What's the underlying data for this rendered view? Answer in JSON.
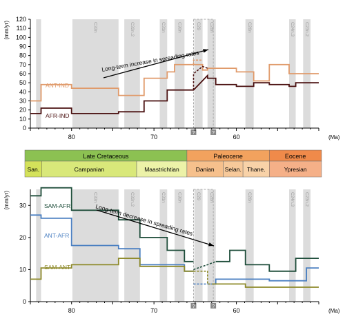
{
  "chart_data": [
    {
      "type": "line",
      "ylabel": "(mm/yr)",
      "xlabel": "(Ma)",
      "xlim": [
        85,
        50
      ],
      "ylim": [
        0,
        120
      ],
      "yticks": [
        0,
        10,
        20,
        30,
        40,
        50,
        60,
        70,
        80,
        90,
        100,
        110,
        120
      ],
      "xticks": [
        80,
        70,
        60
      ],
      "chrons": [
        {
          "label": "C33n",
          "from": 79.9,
          "to": 74.3
        },
        {
          "label": "C32n.2",
          "from": 73.6,
          "to": 71.7
        },
        {
          "label": "C31n",
          "from": 69.3,
          "to": 68.4
        },
        {
          "label": "C30n",
          "from": 67.5,
          "to": 66.3
        },
        {
          "label": "C29",
          "from": 65.1,
          "to": 64.1
        },
        {
          "label": "C28n",
          "from": 63.5,
          "to": 62.5
        },
        {
          "label": "C26n",
          "from": 58.9,
          "to": 57.9
        },
        {
          "label": "C24n.3",
          "from": 53.6,
          "to": 52.8
        },
        {
          "label": "C23n.2",
          "from": 51.9,
          "to": 51.0
        }
      ],
      "extra_bands": [
        {
          "from": 84.3,
          "to": 83.7
        }
      ],
      "gap_box": {
        "from": 65.2,
        "to": 62.8,
        "marker": "?"
      },
      "annotation": "Long-term increase in spreading rates",
      "series": [
        {
          "name": "ANT-IND",
          "color": "#e09a6a",
          "points": [
            [
              85,
              30
            ],
            [
              83.7,
              30
            ],
            [
              83.7,
              48
            ],
            [
              80,
              48
            ],
            [
              80,
              44
            ],
            [
              74.3,
              44
            ],
            [
              74.3,
              36
            ],
            [
              71.2,
              36
            ],
            [
              71.2,
              55
            ],
            [
              68.4,
              55
            ],
            [
              68.4,
              62
            ],
            [
              67.5,
              62
            ],
            [
              67.5,
              70
            ],
            [
              64.1,
              70
            ],
            [
              64.1,
              64
            ],
            [
              63.5,
              64
            ],
            [
              63.5,
              66
            ],
            [
              60,
              66
            ],
            [
              60,
              62
            ],
            [
              57.9,
              62
            ],
            [
              57.9,
              52
            ],
            [
              56,
              52
            ],
            [
              56,
              70
            ],
            [
              53.6,
              70
            ],
            [
              53.6,
              60
            ],
            [
              50,
              60
            ]
          ],
          "dashed_points": [
            [
              65.2,
              70
            ],
            [
              65.2,
              75
            ],
            [
              64.1,
              75
            ]
          ]
        },
        {
          "name": "AFR-IND",
          "color": "#4a1010",
          "points": [
            [
              85,
              16
            ],
            [
              83.7,
              16
            ],
            [
              83.7,
              22
            ],
            [
              80,
              22
            ],
            [
              80,
              16
            ],
            [
              74.3,
              16
            ],
            [
              74.3,
              18
            ],
            [
              71.2,
              18
            ],
            [
              71.2,
              30
            ],
            [
              68.4,
              30
            ],
            [
              68.4,
              42
            ],
            [
              65.2,
              42
            ],
            [
              63.5,
              58
            ],
            [
              63.5,
              55
            ],
            [
              62.5,
              55
            ],
            [
              62.5,
              48
            ],
            [
              60,
              48
            ],
            [
              60,
              46
            ],
            [
              57.9,
              46
            ],
            [
              57.9,
              50
            ],
            [
              56,
              50
            ],
            [
              56,
              48
            ],
            [
              53.6,
              48
            ],
            [
              53.6,
              46
            ],
            [
              52.8,
              46
            ],
            [
              52.8,
              50
            ],
            [
              50,
              50
            ]
          ],
          "dashed_points": [
            [
              65.2,
              42
            ],
            [
              65.2,
              60
            ],
            [
              64.1,
              68
            ],
            [
              63.5,
              66
            ]
          ]
        }
      ]
    },
    {
      "type": "table",
      "epochs": [
        {
          "label": "Late Cretaceous",
          "from": 85,
          "to": 66,
          "color": "#8cc152"
        },
        {
          "label": "Paleocene",
          "from": 66,
          "to": 56,
          "color": "#f2a25e"
        },
        {
          "label": "Eocene",
          "from": 56,
          "to": 50,
          "color": "#f08a4a"
        }
      ],
      "stages": [
        {
          "label": "San.",
          "from": 85,
          "to": 83.6,
          "color": "#d4e25a"
        },
        {
          "label": "Campanian",
          "from": 83.6,
          "to": 72.1,
          "color": "#d9e87a"
        },
        {
          "label": "Maastrichtian",
          "from": 72.1,
          "to": 66,
          "color": "#ecf2a8"
        },
        {
          "label": "Danian",
          "from": 66,
          "to": 61.6,
          "color": "#f6c08c"
        },
        {
          "label": "Selan.",
          "from": 61.6,
          "to": 59.2,
          "color": "#f7c99a"
        },
        {
          "label": "Thane.",
          "from": 59.2,
          "to": 56,
          "color": "#f8d2a8"
        },
        {
          "label": "Ypresian",
          "from": 56,
          "to": 50,
          "color": "#f5b088"
        }
      ]
    },
    {
      "type": "line",
      "ylabel": "(mm/yr)",
      "xlabel": "(Ma)",
      "xlim": [
        85,
        50
      ],
      "ylim": [
        0,
        35
      ],
      "yticks": [
        0,
        10,
        20,
        30
      ],
      "xticks": [
        80,
        70,
        60
      ],
      "chrons": [
        {
          "label": "C33n",
          "from": 79.9,
          "to": 74.3
        },
        {
          "label": "C32n.2",
          "from": 73.6,
          "to": 71.7
        },
        {
          "label": "C31n",
          "from": 69.3,
          "to": 68.4
        },
        {
          "label": "C30n",
          "from": 67.5,
          "to": 66.3
        },
        {
          "label": "C29",
          "from": 65.1,
          "to": 64.1
        },
        {
          "label": "C28n",
          "from": 63.5,
          "to": 62.5
        },
        {
          "label": "C26n",
          "from": 58.9,
          "to": 57.9
        },
        {
          "label": "C24n.3",
          "from": 53.6,
          "to": 52.8
        },
        {
          "label": "C23n.2",
          "from": 51.9,
          "to": 51.0
        }
      ],
      "extra_bands": [
        {
          "from": 84.3,
          "to": 83.7
        }
      ],
      "gap_box": {
        "from": 65.2,
        "to": 62.8,
        "marker": "?"
      },
      "annotation": "Long-term decrease in spreading rates",
      "series": [
        {
          "name": "SAM-AFR",
          "color": "#1e4d3a",
          "points": [
            [
              85,
              33
            ],
            [
              83.7,
              33
            ],
            [
              83.7,
              35.5
            ],
            [
              80,
              35.5
            ],
            [
              80,
              28.5
            ],
            [
              74.3,
              28.5
            ],
            [
              74.3,
              25.5
            ],
            [
              71.7,
              25.5
            ],
            [
              71.7,
              20
            ],
            [
              68.4,
              20
            ],
            [
              68.4,
              16
            ],
            [
              66.3,
              16
            ],
            [
              66.3,
              12.5
            ],
            [
              65.2,
              12.5
            ]
          ],
          "dashed_points": [
            [
              65.2,
              10
            ],
            [
              64.1,
              11
            ],
            [
              63.5,
              11.5
            ],
            [
              62.5,
              12.5
            ]
          ],
          "points2": [
            [
              62.5,
              12.5
            ],
            [
              60.8,
              12.5
            ],
            [
              60.8,
              16
            ],
            [
              58.9,
              16
            ],
            [
              58.9,
              11.5
            ],
            [
              56,
              11.5
            ],
            [
              56,
              9.5
            ],
            [
              52.8,
              9.5
            ],
            [
              52.8,
              13.5
            ],
            [
              50,
              13.5
            ]
          ]
        },
        {
          "name": "ANT-AFR",
          "color": "#4a7fc1",
          "points": [
            [
              85,
              27
            ],
            [
              83.7,
              27
            ],
            [
              83.7,
              26
            ],
            [
              80,
              26
            ],
            [
              80,
              17.5
            ],
            [
              74.3,
              17.5
            ],
            [
              74.3,
              16.5
            ],
            [
              71.7,
              16.5
            ],
            [
              71.7,
              11.5
            ],
            [
              66.3,
              11.5
            ],
            [
              66.3,
              9.5
            ],
            [
              65.2,
              9.5
            ]
          ],
          "dashed_points": [
            [
              65.2,
              5.5
            ],
            [
              62.8,
              5.5
            ]
          ],
          "points2": [
            [
              62.8,
              5.5
            ],
            [
              62.5,
              5.5
            ],
            [
              62.5,
              7
            ],
            [
              56,
              7
            ],
            [
              56,
              6.5
            ],
            [
              51.5,
              6.5
            ],
            [
              51.5,
              10.5
            ],
            [
              50,
              10.5
            ]
          ]
        },
        {
          "name": "SAM-ANT",
          "color": "#8e8a2a",
          "points": [
            [
              85,
              7
            ],
            [
              83.7,
              7
            ],
            [
              83.7,
              10.5
            ],
            [
              80,
              10.5
            ],
            [
              80,
              11.5
            ],
            [
              74.3,
              11.5
            ],
            [
              74.3,
              13.5
            ],
            [
              71.7,
              13.5
            ],
            [
              71.7,
              11
            ],
            [
              66.3,
              11
            ],
            [
              66.3,
              9.5
            ],
            [
              65.2,
              9.5
            ]
          ],
          "dashed_points": [
            [
              65.2,
              9.5
            ],
            [
              63.5,
              9.5
            ],
            [
              63.5,
              5.5
            ],
            [
              62.8,
              5.5
            ]
          ],
          "points2": [
            [
              62.8,
              5.5
            ],
            [
              58.9,
              5.5
            ],
            [
              58.9,
              4.5
            ],
            [
              50,
              4.5
            ]
          ]
        }
      ]
    }
  ]
}
